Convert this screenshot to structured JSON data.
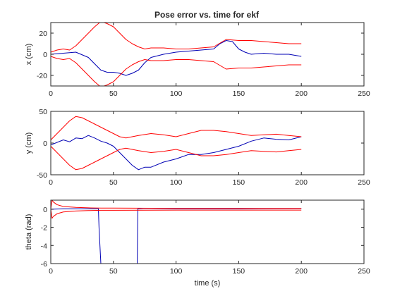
{
  "figure": {
    "title": "Pose error vs. time for ekf",
    "background": "#ffffff"
  },
  "colors": {
    "estimate": "#0000b4",
    "bound": "#ff0000",
    "axis": "#262626"
  },
  "chart_data": [
    {
      "type": "line",
      "title": "Pose error vs. time for ekf",
      "xlabel": "",
      "ylabel": "x (cm)",
      "xlim": [
        0,
        250
      ],
      "ylim": [
        -30,
        30
      ],
      "xticks": [
        0,
        50,
        100,
        150,
        200,
        250
      ],
      "yticks": [
        -20,
        0,
        20
      ],
      "grid": false,
      "series": [
        {
          "role": "estimate",
          "x": [
            0,
            10,
            20,
            30,
            40,
            45,
            50,
            55,
            60,
            65,
            70,
            75,
            80,
            90,
            100,
            110,
            120,
            130,
            135,
            140,
            145,
            150,
            155,
            160,
            170,
            180,
            190,
            195,
            200
          ],
          "y": [
            0,
            1,
            2,
            -3,
            -15,
            -17,
            -17,
            -18,
            -20,
            -18,
            -15,
            -8,
            -3,
            0,
            2,
            3,
            4,
            5,
            10,
            13,
            12,
            5,
            2,
            0,
            1,
            0,
            0,
            -1,
            -2
          ]
        },
        {
          "role": "upper bound",
          "x": [
            0,
            5,
            10,
            15,
            20,
            25,
            30,
            35,
            40,
            45,
            50,
            55,
            60,
            65,
            70,
            75,
            80,
            90,
            100,
            110,
            120,
            130,
            140,
            150,
            160,
            170,
            180,
            190,
            200
          ],
          "y": [
            2,
            4,
            5,
            4,
            8,
            14,
            20,
            26,
            31,
            29,
            26,
            20,
            14,
            10,
            7,
            5,
            6,
            6,
            5,
            5,
            6,
            7,
            14,
            13,
            13,
            12,
            11,
            10,
            10
          ]
        },
        {
          "role": "lower bound",
          "x": [
            0,
            5,
            10,
            15,
            20,
            25,
            30,
            35,
            40,
            45,
            50,
            55,
            60,
            65,
            70,
            75,
            80,
            90,
            100,
            110,
            120,
            130,
            140,
            150,
            160,
            170,
            180,
            190,
            200
          ],
          "y": [
            -2,
            -4,
            -5,
            -4,
            -8,
            -14,
            -20,
            -26,
            -31,
            -29,
            -26,
            -20,
            -14,
            -10,
            -7,
            -5,
            -6,
            -6,
            -5,
            -5,
            -6,
            -7,
            -14,
            -13,
            -13,
            -12,
            -11,
            -10,
            -10
          ]
        }
      ]
    },
    {
      "type": "line",
      "title": "",
      "xlabel": "",
      "ylabel": "y (cm)",
      "xlim": [
        0,
        250
      ],
      "ylim": [
        -50,
        50
      ],
      "xticks": [
        0,
        50,
        100,
        150,
        200,
        250
      ],
      "yticks": [
        -50,
        0,
        50
      ],
      "grid": false,
      "series": [
        {
          "role": "estimate",
          "x": [
            0,
            10,
            15,
            20,
            25,
            30,
            35,
            40,
            45,
            50,
            55,
            60,
            65,
            70,
            75,
            80,
            90,
            100,
            110,
            120,
            130,
            140,
            150,
            160,
            170,
            180,
            190,
            200
          ],
          "y": [
            -3,
            5,
            2,
            8,
            7,
            12,
            8,
            3,
            0,
            -5,
            -15,
            -25,
            -35,
            -42,
            -38,
            -38,
            -30,
            -25,
            -18,
            -18,
            -15,
            -10,
            -5,
            3,
            8,
            6,
            5,
            10
          ]
        },
        {
          "role": "upper bound",
          "x": [
            0,
            5,
            10,
            15,
            20,
            25,
            30,
            35,
            40,
            45,
            50,
            55,
            60,
            65,
            70,
            80,
            90,
            100,
            110,
            120,
            130,
            140,
            150,
            160,
            170,
            180,
            190,
            200
          ],
          "y": [
            5,
            15,
            25,
            35,
            42,
            40,
            35,
            30,
            25,
            20,
            15,
            10,
            8,
            10,
            12,
            15,
            13,
            10,
            15,
            20,
            20,
            18,
            15,
            12,
            13,
            14,
            12,
            10
          ]
        },
        {
          "role": "lower bound",
          "x": [
            0,
            5,
            10,
            15,
            20,
            25,
            30,
            35,
            40,
            45,
            50,
            55,
            60,
            65,
            70,
            80,
            90,
            100,
            110,
            120,
            130,
            140,
            150,
            160,
            170,
            180,
            190,
            200
          ],
          "y": [
            -5,
            -15,
            -25,
            -35,
            -42,
            -40,
            -35,
            -30,
            -25,
            -20,
            -15,
            -10,
            -8,
            -10,
            -12,
            -15,
            -13,
            -10,
            -15,
            -20,
            -20,
            -18,
            -15,
            -12,
            -13,
            -14,
            -12,
            -10
          ]
        }
      ]
    },
    {
      "type": "line",
      "title": "",
      "xlabel": "time (s)",
      "ylabel": "theta (rad)",
      "xlim": [
        0,
        250
      ],
      "ylim": [
        -6,
        1
      ],
      "xticks": [
        0,
        50,
        100,
        150,
        200,
        250
      ],
      "yticks": [
        -6,
        -4,
        -2,
        0
      ],
      "grid": false,
      "series": [
        {
          "role": "estimate",
          "x": [
            0,
            10,
            20,
            30,
            38,
            38.5,
            40,
            42,
            68,
            69,
            69.5,
            75,
            100,
            150,
            200
          ],
          "y": [
            0,
            0.05,
            0.05,
            0.05,
            0.05,
            -2,
            -6.1,
            -6.1,
            -6.1,
            -6.1,
            0.05,
            0.1,
            0.05,
            0.05,
            0.1
          ]
        },
        {
          "role": "upper bound",
          "x": [
            0,
            1,
            2,
            5,
            10,
            20,
            30,
            40,
            50,
            100,
            150,
            200
          ],
          "y": [
            0,
            1.0,
            0.8,
            0.5,
            0.3,
            0.2,
            0.15,
            0.12,
            0.12,
            0.1,
            0.1,
            0.1
          ]
        },
        {
          "role": "lower bound",
          "x": [
            0,
            1,
            2,
            5,
            10,
            20,
            30,
            40,
            50,
            100,
            150,
            200
          ],
          "y": [
            0,
            -1.0,
            -0.8,
            -0.5,
            -0.3,
            -0.2,
            -0.15,
            -0.12,
            -0.12,
            -0.1,
            -0.1,
            -0.1
          ]
        }
      ]
    }
  ]
}
